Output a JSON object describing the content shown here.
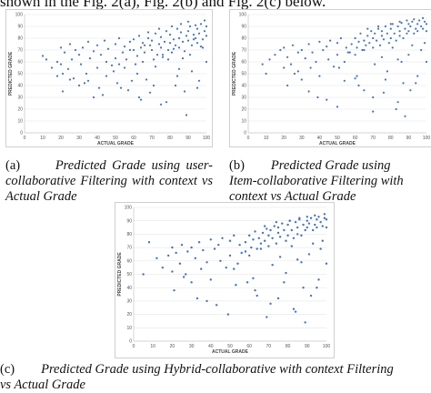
{
  "top_text": "shown in the Fig. 2(a), Fig. 2(b) and Fig. 2(c) below.",
  "captions": {
    "a": {
      "label": "(a)",
      "text": "Predicted Grade using user-collaborative Filtering with context vs Actual Grade"
    },
    "b": {
      "label": "(b)",
      "text_line1": "Predicted Grade using",
      "text_line2": "Item-collaborative Filtering with",
      "text_line3": "context vs Actual Grade"
    },
    "c": {
      "label": "(c)",
      "text_line1": "Predicted Grade using Hybrid-collaborative with context Filtering",
      "text_line2": "vs Actual Grade"
    }
  },
  "colors": {
    "points": "#4472c4",
    "grid": "#e2e2e2"
  },
  "chart_data": [
    {
      "type": "scatter",
      "panel": "a",
      "xlabel": "ACTUAL GRADE",
      "ylabel": "PREDICTED GRADE",
      "xlim": [
        0,
        100
      ],
      "ylim": [
        0,
        100
      ],
      "x_ticks": [
        "0",
        "10",
        "20",
        "30",
        "40",
        "50",
        "60",
        "70",
        "80",
        "90",
        "100"
      ],
      "y_ticks": [
        "0",
        "10",
        "20",
        "30",
        "40",
        "50",
        "60",
        "70",
        "80",
        "90",
        "100"
      ],
      "grid": true,
      "x": [
        10,
        12,
        15,
        18,
        18,
        20,
        20,
        21,
        22,
        24,
        25,
        25,
        26,
        28,
        30,
        30,
        31,
        32,
        34,
        35,
        35,
        36,
        38,
        40,
        40,
        41,
        42,
        44,
        45,
        45,
        46,
        48,
        50,
        50,
        51,
        52,
        54,
        55,
        55,
        56,
        57,
        58,
        60,
        60,
        61,
        62,
        63,
        64,
        65,
        65,
        66,
        67,
        68,
        69,
        70,
        70,
        71,
        72,
        73,
        74,
        75,
        75,
        76,
        77,
        78,
        79,
        80,
        80,
        81,
        82,
        83,
        84,
        85,
        85,
        86,
        87,
        88,
        89,
        90,
        90,
        91,
        92,
        93,
        94,
        95,
        95,
        96,
        97,
        98,
        99,
        100,
        100,
        63,
        71,
        78,
        84,
        88,
        92,
        96,
        68,
        74,
        81,
        86,
        90,
        94,
        99,
        58,
        66,
        76,
        82,
        87,
        93,
        97,
        52,
        62,
        72,
        79,
        85,
        91,
        98,
        21,
        33,
        43,
        53,
        64,
        27,
        38,
        49,
        59,
        69,
        75,
        83,
        89,
        95,
        100
      ],
      "y": [
        65,
        62,
        55,
        60,
        48,
        72,
        58,
        50,
        68,
        54,
        75,
        45,
        62,
        70,
        66,
        40,
        58,
        72,
        50,
        77,
        44,
        63,
        69,
        74,
        55,
        38,
        66,
        78,
        60,
        48,
        71,
        57,
        75,
        63,
        42,
        80,
        68,
        73,
        55,
        62,
        36,
        77,
        79,
        70,
        58,
        65,
        82,
        72,
        76,
        60,
        68,
        45,
        80,
        74,
        78,
        70,
        62,
        84,
        66,
        75,
        81,
        72,
        64,
        77,
        86,
        70,
        83,
        76,
        68,
        79,
        74,
        88,
        80,
        72,
        85,
        77,
        69,
        82,
        86,
        78,
        90,
        74,
        83,
        80,
        88,
        76,
        84,
        92,
        79,
        86,
        90,
        82,
        30,
        40,
        26,
        48,
        35,
        52,
        44,
        85,
        88,
        90,
        92,
        94,
        91,
        95,
        70,
        74,
        66,
        71,
        63,
        79,
        73,
        58,
        50,
        56,
        62,
        54,
        66,
        72,
        35,
        42,
        32,
        38,
        28,
        46,
        30,
        52,
        44,
        34,
        24,
        40,
        15,
        38,
        60
      ]
    },
    {
      "type": "scatter",
      "panel": "b",
      "xlabel": "ACTUAL GRADE",
      "ylabel": "PREDICTED GRADE",
      "xlim": [
        0,
        100
      ],
      "ylim": [
        0,
        100
      ],
      "x_ticks": [
        "0",
        "10",
        "20",
        "30",
        "40",
        "50",
        "60",
        "70",
        "80",
        "90",
        "100"
      ],
      "y_ticks": [
        "0",
        "10",
        "20",
        "30",
        "40",
        "50",
        "60",
        "70",
        "80",
        "90",
        "100"
      ],
      "grid": true,
      "x": [
        8,
        10,
        12,
        15,
        18,
        20,
        20,
        22,
        24,
        25,
        26,
        28,
        30,
        30,
        32,
        34,
        35,
        36,
        38,
        40,
        40,
        42,
        44,
        45,
        46,
        48,
        50,
        50,
        52,
        54,
        55,
        56,
        58,
        60,
        60,
        61,
        62,
        63,
        64,
        65,
        66,
        67,
        68,
        69,
        70,
        70,
        71,
        72,
        73,
        74,
        75,
        75,
        76,
        77,
        78,
        79,
        80,
        80,
        81,
        82,
        83,
        84,
        85,
        85,
        86,
        87,
        88,
        89,
        90,
        90,
        91,
        92,
        93,
        94,
        95,
        95,
        96,
        97,
        98,
        99,
        100,
        100,
        62,
        70,
        77,
        83,
        87,
        91,
        95,
        67,
        73,
        80,
        85,
        89,
        93,
        98,
        57,
        65,
        75,
        81,
        86,
        92,
        97,
        51,
        61,
        71,
        78,
        84,
        90,
        99,
        22,
        34,
        44,
        54,
        65,
        28,
        39,
        50,
        60,
        70,
        76,
        84,
        88,
        94,
        100
      ],
      "y": [
        58,
        50,
        62,
        66,
        70,
        72,
        55,
        64,
        58,
        74,
        50,
        68,
        70,
        45,
        63,
        75,
        55,
        68,
        60,
        77,
        48,
        70,
        73,
        62,
        78,
        56,
        76,
        66,
        80,
        60,
        72,
        68,
        75,
        80,
        66,
        72,
        77,
        84,
        70,
        78,
        74,
        82,
        76,
        86,
        80,
        72,
        84,
        78,
        88,
        74,
        82,
        86,
        79,
        90,
        84,
        76,
        88,
        80,
        92,
        84,
        78,
        90,
        86,
        82,
        93,
        80,
        88,
        84,
        92,
        86,
        90,
        94,
        84,
        88,
        92,
        86,
        95,
        90,
        88,
        94,
        92,
        86,
        40,
        30,
        45,
        20,
        42,
        36,
        48,
        88,
        90,
        92,
        94,
        95,
        96,
        97,
        68,
        70,
        64,
        72,
        60,
        74,
        70,
        55,
        48,
        58,
        52,
        62,
        66,
        76,
        40,
        35,
        28,
        44,
        36,
        52,
        30,
        22,
        46,
        18,
        34,
        26,
        14,
        42,
        60
      ]
    },
    {
      "type": "scatter",
      "panel": "c",
      "xlabel": "ACTUAL GRADE",
      "ylabel": "PREDICTED GRADE",
      "xlim": [
        0,
        100
      ],
      "ylim": [
        0,
        100
      ],
      "x_ticks": [
        "0",
        "10",
        "20",
        "30",
        "40",
        "50",
        "60",
        "70",
        "80",
        "90",
        "100"
      ],
      "y_ticks": [
        "0",
        "10",
        "20",
        "30",
        "40",
        "50",
        "60",
        "70",
        "80",
        "90",
        "100"
      ],
      "grid": true,
      "x": [
        5,
        8,
        12,
        15,
        18,
        20,
        20,
        22,
        24,
        25,
        26,
        28,
        30,
        30,
        32,
        34,
        35,
        36,
        38,
        40,
        40,
        42,
        44,
        45,
        46,
        48,
        50,
        50,
        52,
        54,
        55,
        56,
        58,
        60,
        60,
        61,
        62,
        63,
        64,
        65,
        66,
        67,
        68,
        69,
        70,
        70,
        71,
        72,
        73,
        74,
        75,
        75,
        76,
        77,
        78,
        79,
        80,
        80,
        81,
        82,
        83,
        84,
        85,
        85,
        86,
        87,
        88,
        89,
        90,
        90,
        91,
        92,
        93,
        94,
        95,
        95,
        96,
        97,
        98,
        99,
        100,
        100,
        63,
        71,
        78,
        84,
        88,
        92,
        96,
        68,
        74,
        81,
        86,
        90,
        94,
        99,
        58,
        66,
        76,
        82,
        87,
        93,
        97,
        52,
        62,
        72,
        79,
        85,
        91,
        98,
        21,
        33,
        43,
        53,
        64,
        27,
        38,
        49,
        59,
        69,
        75,
        83,
        89,
        95,
        100
      ],
      "y": [
        50,
        74,
        62,
        55,
        64,
        70,
        52,
        66,
        58,
        72,
        48,
        67,
        70,
        44,
        62,
        74,
        54,
        68,
        59,
        76,
        46,
        69,
        72,
        60,
        77,
        55,
        75,
        64,
        79,
        58,
        72,
        66,
        74,
        79,
        64,
        70,
        76,
        82,
        69,
        77,
        73,
        81,
        75,
        84,
        79,
        71,
        83,
        77,
        86,
        73,
        81,
        85,
        78,
        88,
        83,
        75,
        87,
        79,
        90,
        83,
        77,
        89,
        85,
        80,
        91,
        79,
        87,
        83,
        90,
        85,
        88,
        92,
        83,
        87,
        91,
        85,
        93,
        89,
        86,
        92,
        91,
        85,
        38,
        28,
        44,
        22,
        40,
        34,
        46,
        86,
        89,
        90,
        92,
        93,
        94,
        95,
        67,
        69,
        63,
        71,
        59,
        73,
        69,
        54,
        47,
        57,
        51,
        61,
        65,
        75,
        38,
        32,
        27,
        42,
        34,
        50,
        30,
        20,
        44,
        18,
        32,
        24,
        14,
        40,
        58
      ]
    }
  ]
}
